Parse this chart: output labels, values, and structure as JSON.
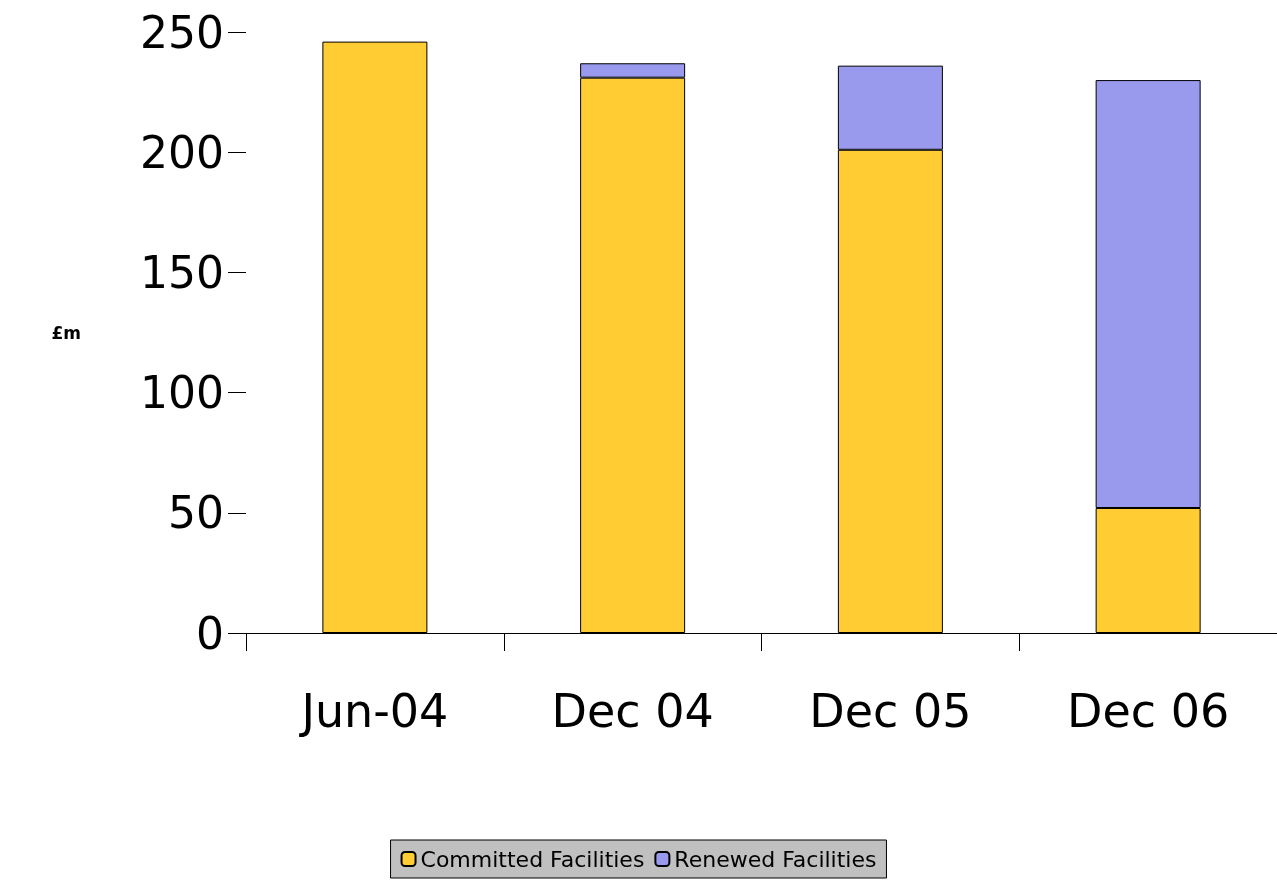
{
  "chart_data": {
    "type": "bar",
    "ylabel": "£m",
    "categories": [
      "Jun-04",
      "Dec 04",
      "Dec 05",
      "Dec 06"
    ],
    "stacked": true,
    "series": [
      {
        "name": "Committed Facilities",
        "color": "#ffcc33",
        "values": [
          246,
          231,
          201,
          52
        ]
      },
      {
        "name": "Renewed Facilities",
        "color": "#9999ee",
        "values": [
          null,
          6,
          35,
          178
        ]
      }
    ],
    "ylim": [
      0,
      250
    ],
    "yticks": [
      0,
      50,
      100,
      150,
      200,
      250
    ],
    "grid": false,
    "legend": "bottom"
  }
}
